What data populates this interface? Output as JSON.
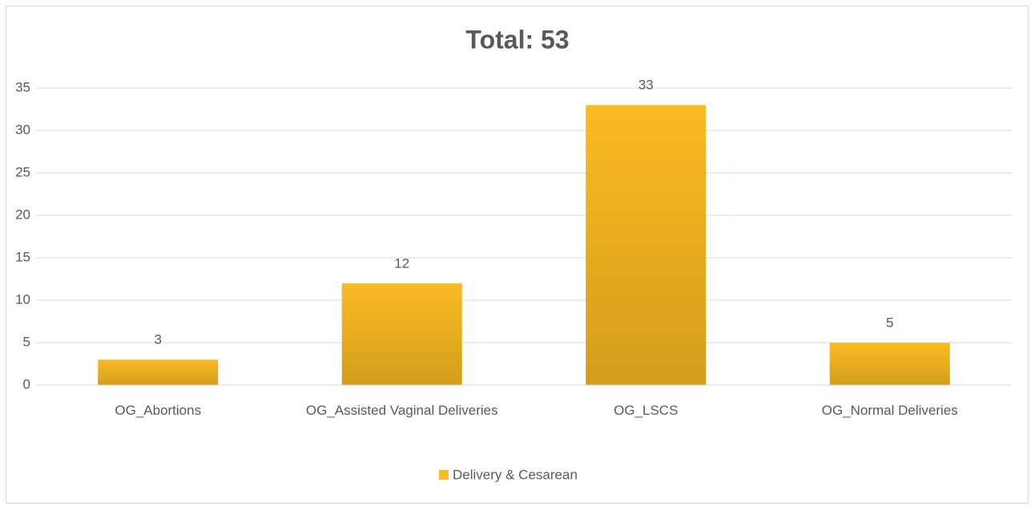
{
  "chart_data": {
    "type": "bar",
    "title": "Total: 53",
    "categories": [
      "OG_Abortions",
      "OG_Assisted Vaginal Deliveries",
      "OG_LSCS",
      "OG_Normal Deliveries"
    ],
    "series": [
      {
        "name": "Delivery & Cesarean",
        "color": "#fbbb22",
        "values": [
          3,
          12,
          33,
          5
        ]
      }
    ],
    "ylim": [
      0,
      35
    ],
    "yticks": [
      0,
      5,
      10,
      15,
      20,
      25,
      30,
      35
    ],
    "grid": true,
    "legend": "bottom"
  }
}
